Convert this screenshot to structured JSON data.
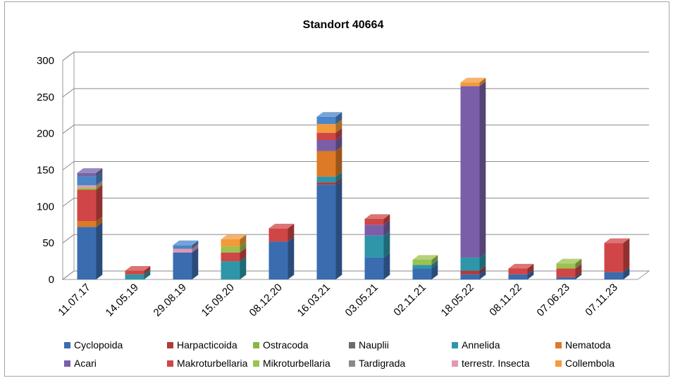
{
  "chart_data": {
    "type": "bar",
    "stacked": true,
    "three_d": true,
    "title": "Standort 40664",
    "xlabel": "",
    "ylabel": "",
    "ylim": [
      0,
      300
    ],
    "yticks": [
      0,
      50,
      100,
      150,
      200,
      250,
      300
    ],
    "grid": true,
    "legend_position": "bottom",
    "categories": [
      "11.07.17",
      "14.05.19",
      "29.08.19",
      "15.09.20",
      "08.12.20",
      "16.03.21",
      "03.05.21",
      "02.11.21",
      "18.05.22",
      "08.11.22",
      "07.06.23",
      "07.11.23"
    ],
    "series": [
      {
        "name": "Cyclopoida",
        "color": "#3a6cb0",
        "values": [
          72,
          0,
          37,
          0,
          52,
          130,
          30,
          15,
          7,
          7,
          3,
          10
        ]
      },
      {
        "name": "Harpacticoida",
        "color": "#b03a3a",
        "values": [
          0,
          0,
          0,
          0,
          0,
          3,
          0,
          0,
          5,
          0,
          0,
          0
        ]
      },
      {
        "name": "Ostracoda",
        "color": "#8cb547",
        "values": [
          0,
          0,
          0,
          0,
          0,
          0,
          0,
          0,
          0,
          0,
          0,
          0
        ]
      },
      {
        "name": "Nauplii",
        "color": "#6b6b6b",
        "values": [
          0,
          0,
          0,
          0,
          0,
          0,
          0,
          0,
          0,
          0,
          0,
          0
        ]
      },
      {
        "name": "Annelida",
        "color": "#2e96a8",
        "values": [
          0,
          7,
          0,
          25,
          0,
          8,
          30,
          5,
          18,
          0,
          0,
          0
        ]
      },
      {
        "name": "Nematoda",
        "color": "#dd7a26",
        "values": [
          8,
          0,
          0,
          0,
          0,
          35,
          0,
          0,
          0,
          0,
          0,
          0
        ]
      },
      {
        "name": "Acari",
        "color": "#7a5fa8",
        "values": [
          0,
          0,
          0,
          0,
          0,
          15,
          15,
          0,
          235,
          0,
          0,
          0
        ]
      },
      {
        "name": "Makroturbellaria",
        "color": "#d04545",
        "values": [
          43,
          5,
          0,
          12,
          18,
          10,
          8,
          0,
          0,
          8,
          12,
          40
        ]
      },
      {
        "name": "Mikroturbellaria",
        "color": "#9ac24f",
        "values": [
          3,
          0,
          0,
          8,
          0,
          0,
          0,
          7,
          0,
          0,
          7,
          0
        ]
      },
      {
        "name": "Tardigrada",
        "color": "#8a8a8a",
        "values": [
          0,
          0,
          0,
          0,
          0,
          0,
          0,
          0,
          0,
          0,
          0,
          0
        ]
      },
      {
        "name": "terrestr. Insecta",
        "color": "#e597b6",
        "values": [
          3,
          0,
          5,
          0,
          0,
          0,
          0,
          0,
          0,
          0,
          0,
          0
        ]
      },
      {
        "name": "Collembola",
        "color": "#f39a3a",
        "values": [
          0,
          0,
          0,
          10,
          0,
          12,
          0,
          0,
          5,
          0,
          0,
          0
        ]
      },
      {
        "name": "",
        "color": "#4a86c8",
        "values": [
          12,
          0,
          5,
          0,
          0,
          10,
          0,
          0,
          0,
          0,
          0,
          0
        ]
      },
      {
        "name": "",
        "color": "#7565a8",
        "values": [
          5,
          0,
          0,
          0,
          0,
          0,
          0,
          0,
          0,
          0,
          0,
          0
        ]
      }
    ]
  }
}
